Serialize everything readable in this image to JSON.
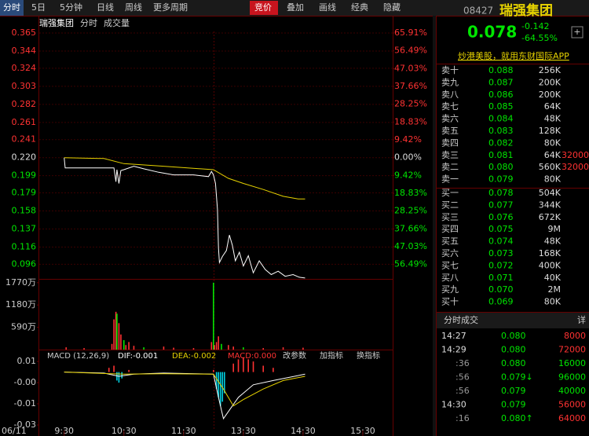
{
  "toolbar": {
    "tabs": [
      "分时",
      "5日",
      "5分钟",
      "日线",
      "周线",
      "更多周期"
    ],
    "right_tabs": [
      "竞价",
      "叠加",
      "画线",
      "经典",
      "隐藏"
    ]
  },
  "legend": {
    "items": [
      "瑞强集团",
      "分时",
      "成交量"
    ]
  },
  "macd_header": {
    "indicator": "MACD (12,26,9)",
    "dif": "DIF:-0.001",
    "dea": "DEA:-0.002",
    "macd": "MACD:0.000",
    "buttons": [
      "改参数",
      "加指标",
      "换指标"
    ]
  },
  "date_label": "06/11",
  "chart_data": [
    {
      "type": "line",
      "xlim": [
        -25,
        330
      ],
      "ylim": [
        0.079,
        0.365
      ],
      "y2lim": [
        -64.09,
        65.91
      ],
      "yticks": [
        0.365,
        0.344,
        0.324,
        0.303,
        0.282,
        0.261,
        0.241,
        {
          "value": 0.22,
          "label": "0.220"
        },
        0.199,
        0.179,
        0.158,
        0.137,
        0.116,
        0.096
      ],
      "y2ticks": [
        {
          "value": 65.91,
          "label": "65.91%"
        },
        {
          "value": 56.49,
          "label": "56.49%"
        },
        {
          "value": 47.03,
          "label": "47.03%"
        },
        {
          "value": 37.66,
          "label": "37.66%"
        },
        {
          "value": 28.25,
          "label": "28.25%"
        },
        {
          "value": 18.83,
          "label": "18.83%"
        },
        {
          "value": 9.42,
          "label": "9.42%"
        },
        {
          "value": 0,
          "label": "0.00%"
        },
        {
          "value": -9.42,
          "label": "9.42%"
        },
        {
          "value": -18.83,
          "label": "18.83%"
        },
        {
          "value": -28.25,
          "label": "28.25%"
        },
        {
          "value": -37.66,
          "label": "37.66%"
        },
        {
          "value": -47.03,
          "label": "47.03%"
        },
        {
          "value": -56.49,
          "label": "56.49%"
        }
      ],
      "grid": true,
      "series": [
        {
          "color": "#ffffff",
          "x": [
            0,
            1,
            50,
            52,
            53,
            55,
            57,
            60,
            70,
            80,
            95,
            110,
            130,
            145,
            148,
            150,
            152,
            154,
            155,
            156,
            159,
            163,
            166,
            169,
            172,
            176,
            180,
            185,
            190,
            196,
            202,
            208,
            215,
            222,
            230,
            236,
            242
          ],
          "values": [
            0.22,
            0.208,
            0.208,
            0.192,
            0.206,
            0.19,
            0.205,
            0.206,
            0.21,
            0.207,
            0.203,
            0.2,
            0.2,
            0.198,
            0.204,
            0.2,
            0.19,
            0.16,
            0.115,
            0.098,
            0.105,
            0.112,
            0.13,
            0.118,
            0.1,
            0.11,
            0.094,
            0.106,
            0.086,
            0.1,
            0.09,
            0.084,
            0.088,
            0.082,
            0.084,
            0.081,
            0.08
          ]
        },
        {
          "color": "#e6d200",
          "x": [
            0,
            40,
            60,
            100,
            150,
            165,
            180,
            200,
            220,
            235,
            242
          ],
          "values": [
            0.22,
            0.219,
            0.213,
            0.21,
            0.206,
            0.196,
            0.19,
            0.183,
            0.175,
            0.172,
            0.172
          ]
        }
      ]
    },
    {
      "type": "bar",
      "xlim": [
        -25,
        330
      ],
      "ylim": [
        0,
        1850
      ],
      "yticks": [
        {
          "value": 1770,
          "label": "1770万"
        },
        {
          "value": 1180,
          "label": "1180万"
        },
        {
          "value": 590,
          "label": "590万"
        }
      ],
      "x": [
        2,
        20,
        48,
        50,
        52,
        53,
        55,
        57,
        60,
        62,
        65,
        70,
        80,
        100,
        110,
        130,
        148,
        150,
        151,
        153,
        155,
        158,
        165,
        170,
        180,
        200,
        220,
        240
      ],
      "values": [
        60,
        40,
        150,
        800,
        1000,
        950,
        700,
        400,
        250,
        120,
        200,
        100,
        60,
        80,
        50,
        40,
        200,
        1770,
        120,
        200,
        350,
        150,
        120,
        80,
        60,
        40,
        60,
        50
      ],
      "colors": [
        "#ff3232",
        "#ff3232",
        "#ff3232",
        "#ff3232",
        "#ff3232",
        "#00e600",
        "#ff3232",
        "#ff3232",
        "#00e600",
        "#ff3232",
        "#ff3232",
        "#ff3232",
        "#00e600",
        "#ff3232",
        "#ff3232",
        "#ff3232",
        "#ff3232",
        "#00e600",
        "#ff3232",
        "#ff3232",
        "#ff3232",
        "#00e600",
        "#ff3232",
        "#ff3232",
        "#00e600",
        "#ff3232",
        "#ff3232",
        "#ff3232"
      ]
    },
    {
      "type": "macd",
      "xlim": [
        -25,
        330
      ],
      "ylim": [
        -0.0276,
        0.0069
      ],
      "yticks": [
        {
          "value": 0.005,
          "label": "0.01"
        },
        {
          "value": -0.005,
          "label": "-0.00"
        },
        {
          "value": -0.015,
          "label": "-0.01"
        },
        {
          "value": -0.025,
          "label": "-0.03"
        }
      ],
      "xticks": [
        {
          "value": 0,
          "label": "9:30"
        },
        {
          "value": 60,
          "label": "10:30"
        },
        {
          "value": 120,
          "label": "11:30"
        },
        {
          "value": 180,
          "label": "13:30"
        },
        {
          "value": 240,
          "label": "14:30"
        },
        {
          "value": 300,
          "label": "15:30"
        }
      ],
      "series": [
        {
          "color": "#ffffff",
          "x": [
            0,
            40,
            55,
            70,
            100,
            150,
            155,
            160,
            166,
            175,
            190,
            210,
            242
          ],
          "values": [
            0,
            -0.0005,
            -0.002,
            -0.001,
            -0.0005,
            -0.001,
            -0.012,
            -0.022,
            -0.018,
            -0.012,
            -0.006,
            -0.004,
            -0.001
          ]
        },
        {
          "color": "#e6d200",
          "x": [
            0,
            60,
            100,
            150,
            160,
            170,
            180,
            200,
            220,
            242
          ],
          "values": [
            0,
            -0.001,
            -0.0008,
            -0.001,
            -0.008,
            -0.016,
            -0.013,
            -0.008,
            -0.004,
            -0.002
          ]
        }
      ],
      "histogram": {
        "x": [
          45,
          50,
          53,
          55,
          58,
          65,
          150,
          153,
          155,
          157,
          159,
          161,
          170,
          175,
          180,
          185,
          190,
          200,
          210
        ],
        "values": [
          0.002,
          0.003,
          -0.004,
          -0.005,
          -0.003,
          0.001,
          0.001,
          -0.008,
          -0.012,
          -0.016,
          -0.014,
          -0.01,
          0.004,
          0.006,
          0.007,
          0.006,
          0.005,
          0.003,
          0.002
        ],
        "up_color": "#ff3232",
        "down_color": "#00d0e0"
      }
    }
  ],
  "quote": {
    "code": "08427",
    "name": "瑞强集团",
    "price": "0.078",
    "change": "-0.142",
    "change_pct": "-64.55%",
    "ad": "炒港美股，就用东财国际APP"
  },
  "order_book": {
    "asks": [
      {
        "label": "卖十",
        "price": "0.088",
        "volume": "256K"
      },
      {
        "label": "卖九",
        "price": "0.087",
        "volume": "200K"
      },
      {
        "label": "卖八",
        "price": "0.086",
        "volume": "200K"
      },
      {
        "label": "卖七",
        "price": "0.085",
        "volume": "64K"
      },
      {
        "label": "卖六",
        "price": "0.084",
        "volume": "48K"
      },
      {
        "label": "卖五",
        "price": "0.083",
        "volume": "128K"
      },
      {
        "label": "卖四",
        "price": "0.082",
        "volume": "80K"
      },
      {
        "label": "卖三",
        "price": "0.081",
        "volume": "64K",
        "extra": "32000"
      },
      {
        "label": "卖二",
        "price": "0.080",
        "volume": "560K",
        "extra": "32000"
      },
      {
        "label": "卖一",
        "price": "0.079",
        "volume": "80K"
      }
    ],
    "bids": [
      {
        "label": "买一",
        "price": "0.078",
        "volume": "504K"
      },
      {
        "label": "买二",
        "price": "0.077",
        "volume": "344K"
      },
      {
        "label": "买三",
        "price": "0.076",
        "volume": "672K"
      },
      {
        "label": "买四",
        "price": "0.075",
        "volume": "9M"
      },
      {
        "label": "买五",
        "price": "0.074",
        "volume": "48K"
      },
      {
        "label": "买六",
        "price": "0.073",
        "volume": "168K"
      },
      {
        "label": "买七",
        "price": "0.072",
        "volume": "400K"
      },
      {
        "label": "买八",
        "price": "0.071",
        "volume": "40K"
      },
      {
        "label": "买九",
        "price": "0.070",
        "volume": "2M"
      },
      {
        "label": "买十",
        "price": "0.069",
        "volume": "80K"
      }
    ]
  },
  "trades": {
    "title": "分时成交",
    "detail": "详",
    "rows": [
      {
        "time": "14:27",
        "price": "0.080",
        "volume": "8000",
        "color": "#ff3232"
      },
      {
        "time": "14:29",
        "price": "0.080",
        "volume": "72000",
        "color": "#ff3232"
      },
      {
        "time": ":36",
        "price": "0.080",
        "volume": "16000",
        "color": "#00e600"
      },
      {
        "time": ":56",
        "price": "0.079↓",
        "volume": "96000",
        "color": "#00e600"
      },
      {
        "time": ":56",
        "price": "0.079",
        "volume": "40000",
        "color": "#00e600"
      },
      {
        "time": "14:30",
        "price": "0.079",
        "volume": "56000",
        "color": "#ff3232"
      },
      {
        "time": ":16",
        "price": "0.080↑",
        "volume": "64000",
        "color": "#ff3232"
      }
    ]
  }
}
